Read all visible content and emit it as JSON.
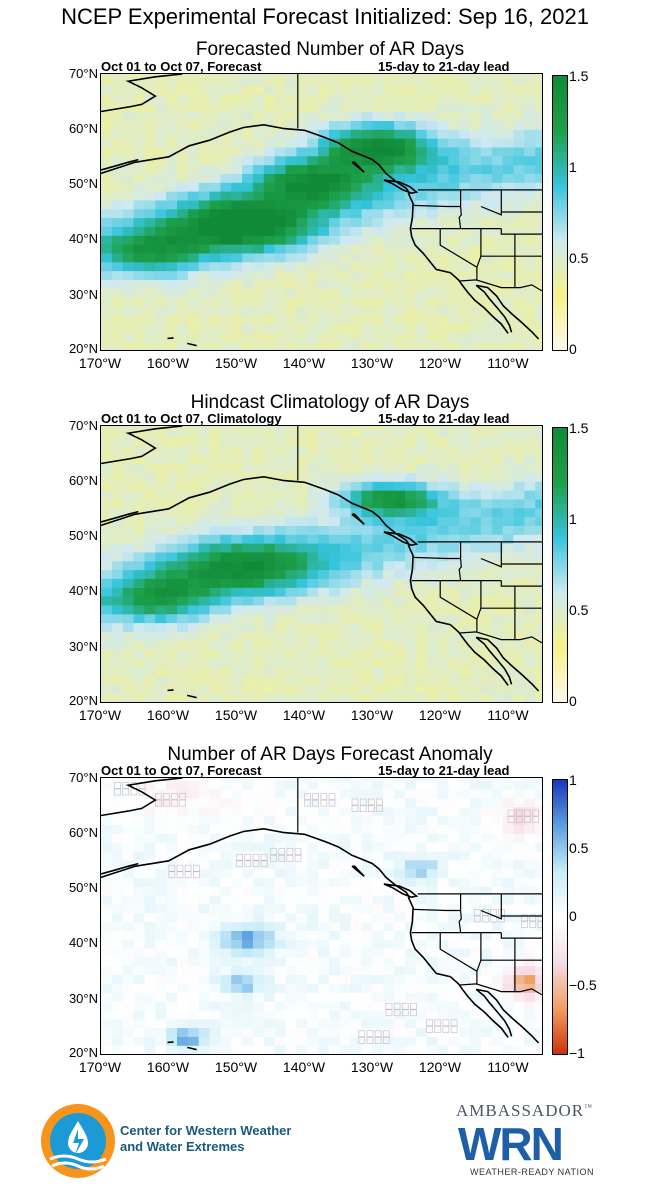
{
  "main_title": "NCEP Experimental Forecast Initialized: Sep 16, 2021",
  "chart_data": [
    {
      "type": "heatmap",
      "title": "Forecasted Number of AR Days",
      "subtitle_left": "Oct 01 to Oct 07, Forecast",
      "subtitle_right": "15-day to 21-day lead",
      "xlim": [
        -170,
        -105
      ],
      "ylim": [
        20,
        70
      ],
      "x_ticks": [
        "170°W",
        "160°W",
        "150°W",
        "140°W",
        "130°W",
        "120°W",
        "110°W"
      ],
      "y_ticks": [
        "70°N",
        "60°N",
        "50°N",
        "40°N",
        "30°N",
        "20°N"
      ],
      "colorbar": {
        "ticks": [
          "1.5",
          "1",
          "0.5",
          "0"
        ],
        "range": [
          0,
          1.5
        ],
        "colors": [
          "#fff8ef",
          "#f6f18a",
          "#cfe9f2",
          "#35c4dc",
          "#1ea04a",
          "#118a38"
        ]
      },
      "background_value": 0.45,
      "features": [
        {
          "name": "Main AR band",
          "lon": -150,
          "lat": 42,
          "value": 1.45,
          "spread_lon": 10,
          "spread_lat": 5
        },
        {
          "name": "Gulf of Alaska maximum",
          "lon": -130,
          "lat": 56,
          "value": 1.5,
          "spread_lon": 8,
          "spread_lat": 4
        },
        {
          "name": "Mid-Pacific band",
          "lon": -140,
          "lat": 50,
          "value": 1.3,
          "spread_lon": 8,
          "spread_lat": 4
        },
        {
          "name": "Western band",
          "lon": -163,
          "lat": 37,
          "value": 1.05,
          "spread_lon": 7,
          "spread_lat": 4
        }
      ]
    },
    {
      "type": "heatmap",
      "title": "Hindcast Climatology of AR Days",
      "subtitle_left": "Oct 01 to Oct 07, Climatology",
      "subtitle_right": "15-day to 21-day lead",
      "xlim": [
        -170,
        -105
      ],
      "ylim": [
        20,
        70
      ],
      "x_ticks": [
        "170°W",
        "160°W",
        "150°W",
        "140°W",
        "130°W",
        "120°W",
        "110°W"
      ],
      "y_ticks": [
        "70°N",
        "60°N",
        "50°N",
        "40°N",
        "30°N",
        "20°N"
      ],
      "colorbar": {
        "ticks": [
          "1.5",
          "1",
          "0.5",
          "0"
        ],
        "range": [
          0,
          1.5
        ],
        "colors": [
          "#fff8ef",
          "#f6f18a",
          "#cfe9f2",
          "#35c4dc",
          "#1ea04a",
          "#118a38"
        ]
      },
      "background_value": 0.45,
      "features": [
        {
          "name": "Main AR band",
          "lon": -150,
          "lat": 44,
          "value": 1.15,
          "spread_lon": 11,
          "spread_lat": 5
        },
        {
          "name": "Gulf of Alaska maximum",
          "lon": -128,
          "lat": 56,
          "value": 1.3,
          "spread_lon": 7,
          "spread_lat": 3
        },
        {
          "name": "Western band",
          "lon": -162,
          "lat": 38,
          "value": 1.0,
          "spread_lon": 7,
          "spread_lat": 4
        }
      ]
    },
    {
      "type": "heatmap",
      "title": "Number of AR Days Forecast Anomaly",
      "subtitle_left": "Oct 01 to Oct 07, Forecast",
      "subtitle_right": "15-day to 21-day lead",
      "xlim": [
        -170,
        -105
      ],
      "ylim": [
        20,
        70
      ],
      "x_ticks": [
        "170°W",
        "160°W",
        "150°W",
        "140°W",
        "130°W",
        "120°W",
        "110°W"
      ],
      "y_ticks": [
        "70°N",
        "60°N",
        "50°N",
        "40°N",
        "30°N",
        "20°N"
      ],
      "colorbar": {
        "ticks": [
          "1",
          "0.5",
          "0",
          "−0.5",
          "−1"
        ],
        "range": [
          -1,
          1
        ],
        "colors": [
          "#d0300c",
          "#f0a060",
          "#f5dce6",
          "#ffffff",
          "#c8ecf8",
          "#5aa0e0",
          "#1838b8"
        ]
      },
      "background_value": 0.05,
      "features": [
        {
          "name": "Positive anomaly core",
          "lon": -149,
          "lat": 40,
          "value": 0.6,
          "spread_lon": 4,
          "spread_lat": 3
        },
        {
          "name": "Positive anomaly south",
          "lon": -150,
          "lat": 32,
          "value": 0.55,
          "spread_lon": 3,
          "spread_lat": 2
        },
        {
          "name": "Positive anomaly SW",
          "lon": -158,
          "lat": 22,
          "value": 0.6,
          "spread_lon": 3,
          "spread_lat": 2
        },
        {
          "name": "Coastal positive",
          "lon": -124,
          "lat": 53,
          "value": 0.45,
          "spread_lon": 3,
          "spread_lat": 2
        },
        {
          "name": "Northern negative",
          "lon": -160,
          "lat": 66,
          "value": -0.15,
          "spread_lon": 10,
          "spread_lat": 4
        },
        {
          "name": "Southwest US negative",
          "lon": -108,
          "lat": 32,
          "value": -0.7,
          "spread_lon": 3,
          "spread_lat": 3
        },
        {
          "name": "Alaska interior negative",
          "lon": -109,
          "lat": 62,
          "value": -0.35,
          "spread_lon": 3,
          "spread_lat": 3
        }
      ]
    }
  ],
  "logos": {
    "cw3e_line1": "Center for Western Weather",
    "cw3e_line2": "and Water Extremes",
    "ambassador": "AMBASSADOR",
    "tm": "™",
    "wrn": "WRN",
    "wrn_sub": "WEATHER-READY NATION"
  }
}
